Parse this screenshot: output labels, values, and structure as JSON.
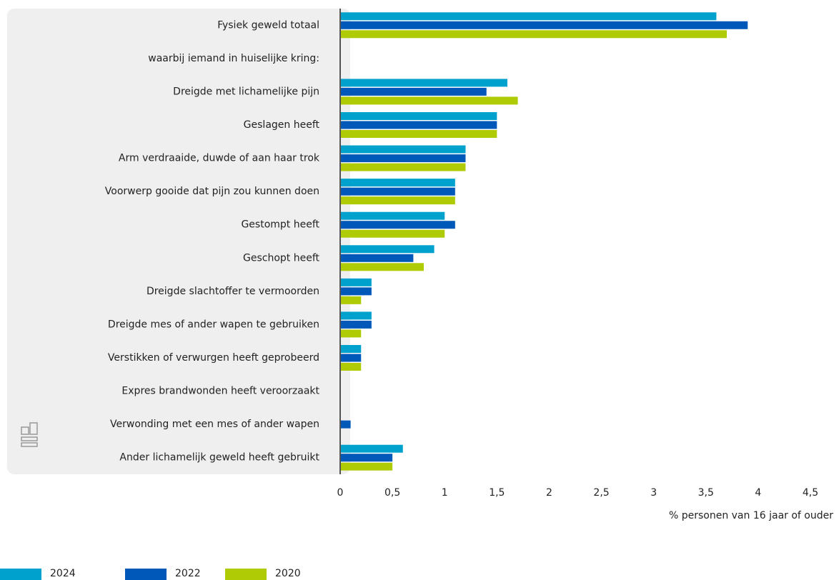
{
  "chart_data": {
    "type": "barh",
    "categories": [
      "Fysiek geweld totaal",
      "waarbij iemand in huiselijke kring:",
      "Dreigde met lichamelijke pijn",
      "Geslagen heeft",
      "Arm verdraaide, duwde of aan haar trok",
      "Voorwerp gooide dat pijn zou kunnen doen",
      "Gestompt heeft",
      "Geschopt heeft",
      "Dreigde slachtoffer te vermoorden",
      "Dreigde mes of ander wapen te gebruiken",
      "Verstikken of verwurgen heeft geprobeerd",
      "Expres brandwonden heeft veroorzaakt",
      "Verwonding met een mes of ander wapen",
      "Ander lichamelijk geweld heeft gebruikt"
    ],
    "series": [
      {
        "name": "2024",
        "color": "#00a1cd",
        "values": [
          3.6,
          null,
          1.6,
          1.5,
          1.2,
          1.1,
          1.0,
          0.9,
          0.3,
          0.3,
          0.2,
          0,
          0,
          0.6
        ]
      },
      {
        "name": "2022",
        "color": "#0058b8",
        "values": [
          3.9,
          null,
          1.4,
          1.5,
          1.2,
          1.1,
          1.1,
          0.7,
          0.3,
          0.3,
          0.2,
          0,
          0.1,
          0.5
        ]
      },
      {
        "name": "2020",
        "color": "#afcb05",
        "values": [
          3.7,
          null,
          1.7,
          1.5,
          1.2,
          1.1,
          1.0,
          0.8,
          0.2,
          0.2,
          0.2,
          0,
          0,
          0.5
        ]
      }
    ],
    "xlabel": "% personen van 16 jaar of ouder",
    "xlim": [
      0,
      4.5
    ],
    "xticks": [
      0,
      {
        "value": 0.5,
        "label": "0,5"
      },
      1,
      {
        "value": 1.5,
        "label": "1,5"
      },
      2,
      {
        "value": 2.5,
        "label": "2,5"
      },
      3,
      {
        "value": 3.5,
        "label": "3,5"
      },
      4,
      {
        "value": 4.5,
        "label": "4,5"
      }
    ],
    "grid": false,
    "legend": "bottom"
  }
}
